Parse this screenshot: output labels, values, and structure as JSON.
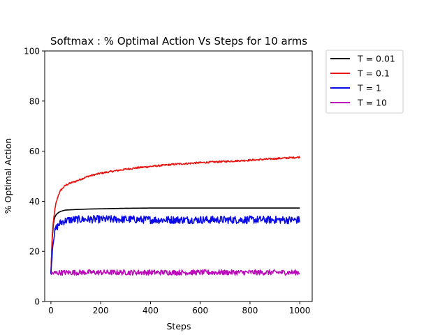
{
  "chart_data": {
    "type": "line",
    "title": "Softmax : % Optimal Action Vs Steps for 10 arms",
    "xlabel": "Steps",
    "ylabel": "% Optimal Action",
    "xlim": [
      -25,
      1050
    ],
    "ylim": [
      0,
      100
    ],
    "xticks": [
      0,
      200,
      400,
      600,
      800,
      1000
    ],
    "yticks": [
      0,
      20,
      40,
      60,
      80,
      100
    ],
    "grid": false,
    "legend": "outside-top-right",
    "series": [
      {
        "name": "T = 0.01",
        "color": "#000000",
        "x": [
          0,
          5,
          10,
          15,
          20,
          30,
          40,
          50,
          60,
          80,
          100,
          150,
          200,
          300,
          400,
          500,
          600,
          700,
          800,
          900,
          1000
        ],
        "y": [
          11,
          25,
          31,
          33.5,
          34.5,
          35.5,
          36,
          36.3,
          36.5,
          36.6,
          36.7,
          36.9,
          37.0,
          37.2,
          37.3,
          37.3,
          37.3,
          37.3,
          37.3,
          37.3,
          37.3
        ],
        "noise": 0
      },
      {
        "name": "T = 0.1",
        "color": "#e8120e",
        "x": [
          0,
          5,
          10,
          15,
          20,
          30,
          40,
          50,
          60,
          80,
          100,
          150,
          200,
          250,
          300,
          350,
          400,
          500,
          600,
          700,
          800,
          900,
          1000
        ],
        "y": [
          11,
          26,
          32,
          36,
          39,
          42.5,
          44.5,
          45.5,
          46.5,
          47.3,
          48,
          50,
          51.2,
          52,
          52.8,
          53.4,
          53.9,
          54.8,
          55.4,
          55.9,
          56.4,
          57.0,
          57.6
        ],
        "noise": 0.25
      },
      {
        "name": "T = 1",
        "color": "#0a0ae8",
        "x": [
          0,
          5,
          10,
          15,
          20,
          30,
          40,
          50,
          70,
          100,
          150,
          200,
          300,
          400,
          500,
          600,
          700,
          800,
          900,
          1000
        ],
        "y": [
          11,
          20,
          25,
          27.5,
          29,
          30.5,
          31.5,
          32,
          32.5,
          32.7,
          32.8,
          32.8,
          32.8,
          32.6,
          32.6,
          32.6,
          32.6,
          32.6,
          32.6,
          32.5
        ],
        "noise": 1.1
      },
      {
        "name": "T = 10",
        "color": "#bb0bbb",
        "x": [
          0,
          10,
          30,
          100,
          200,
          300,
          400,
          500,
          600,
          700,
          800,
          900,
          1000
        ],
        "y": [
          11,
          11.3,
          11.5,
          11.6,
          11.6,
          11.6,
          11.6,
          11.6,
          11.6,
          11.6,
          11.6,
          11.6,
          11.6
        ],
        "noise": 0.75
      }
    ]
  }
}
